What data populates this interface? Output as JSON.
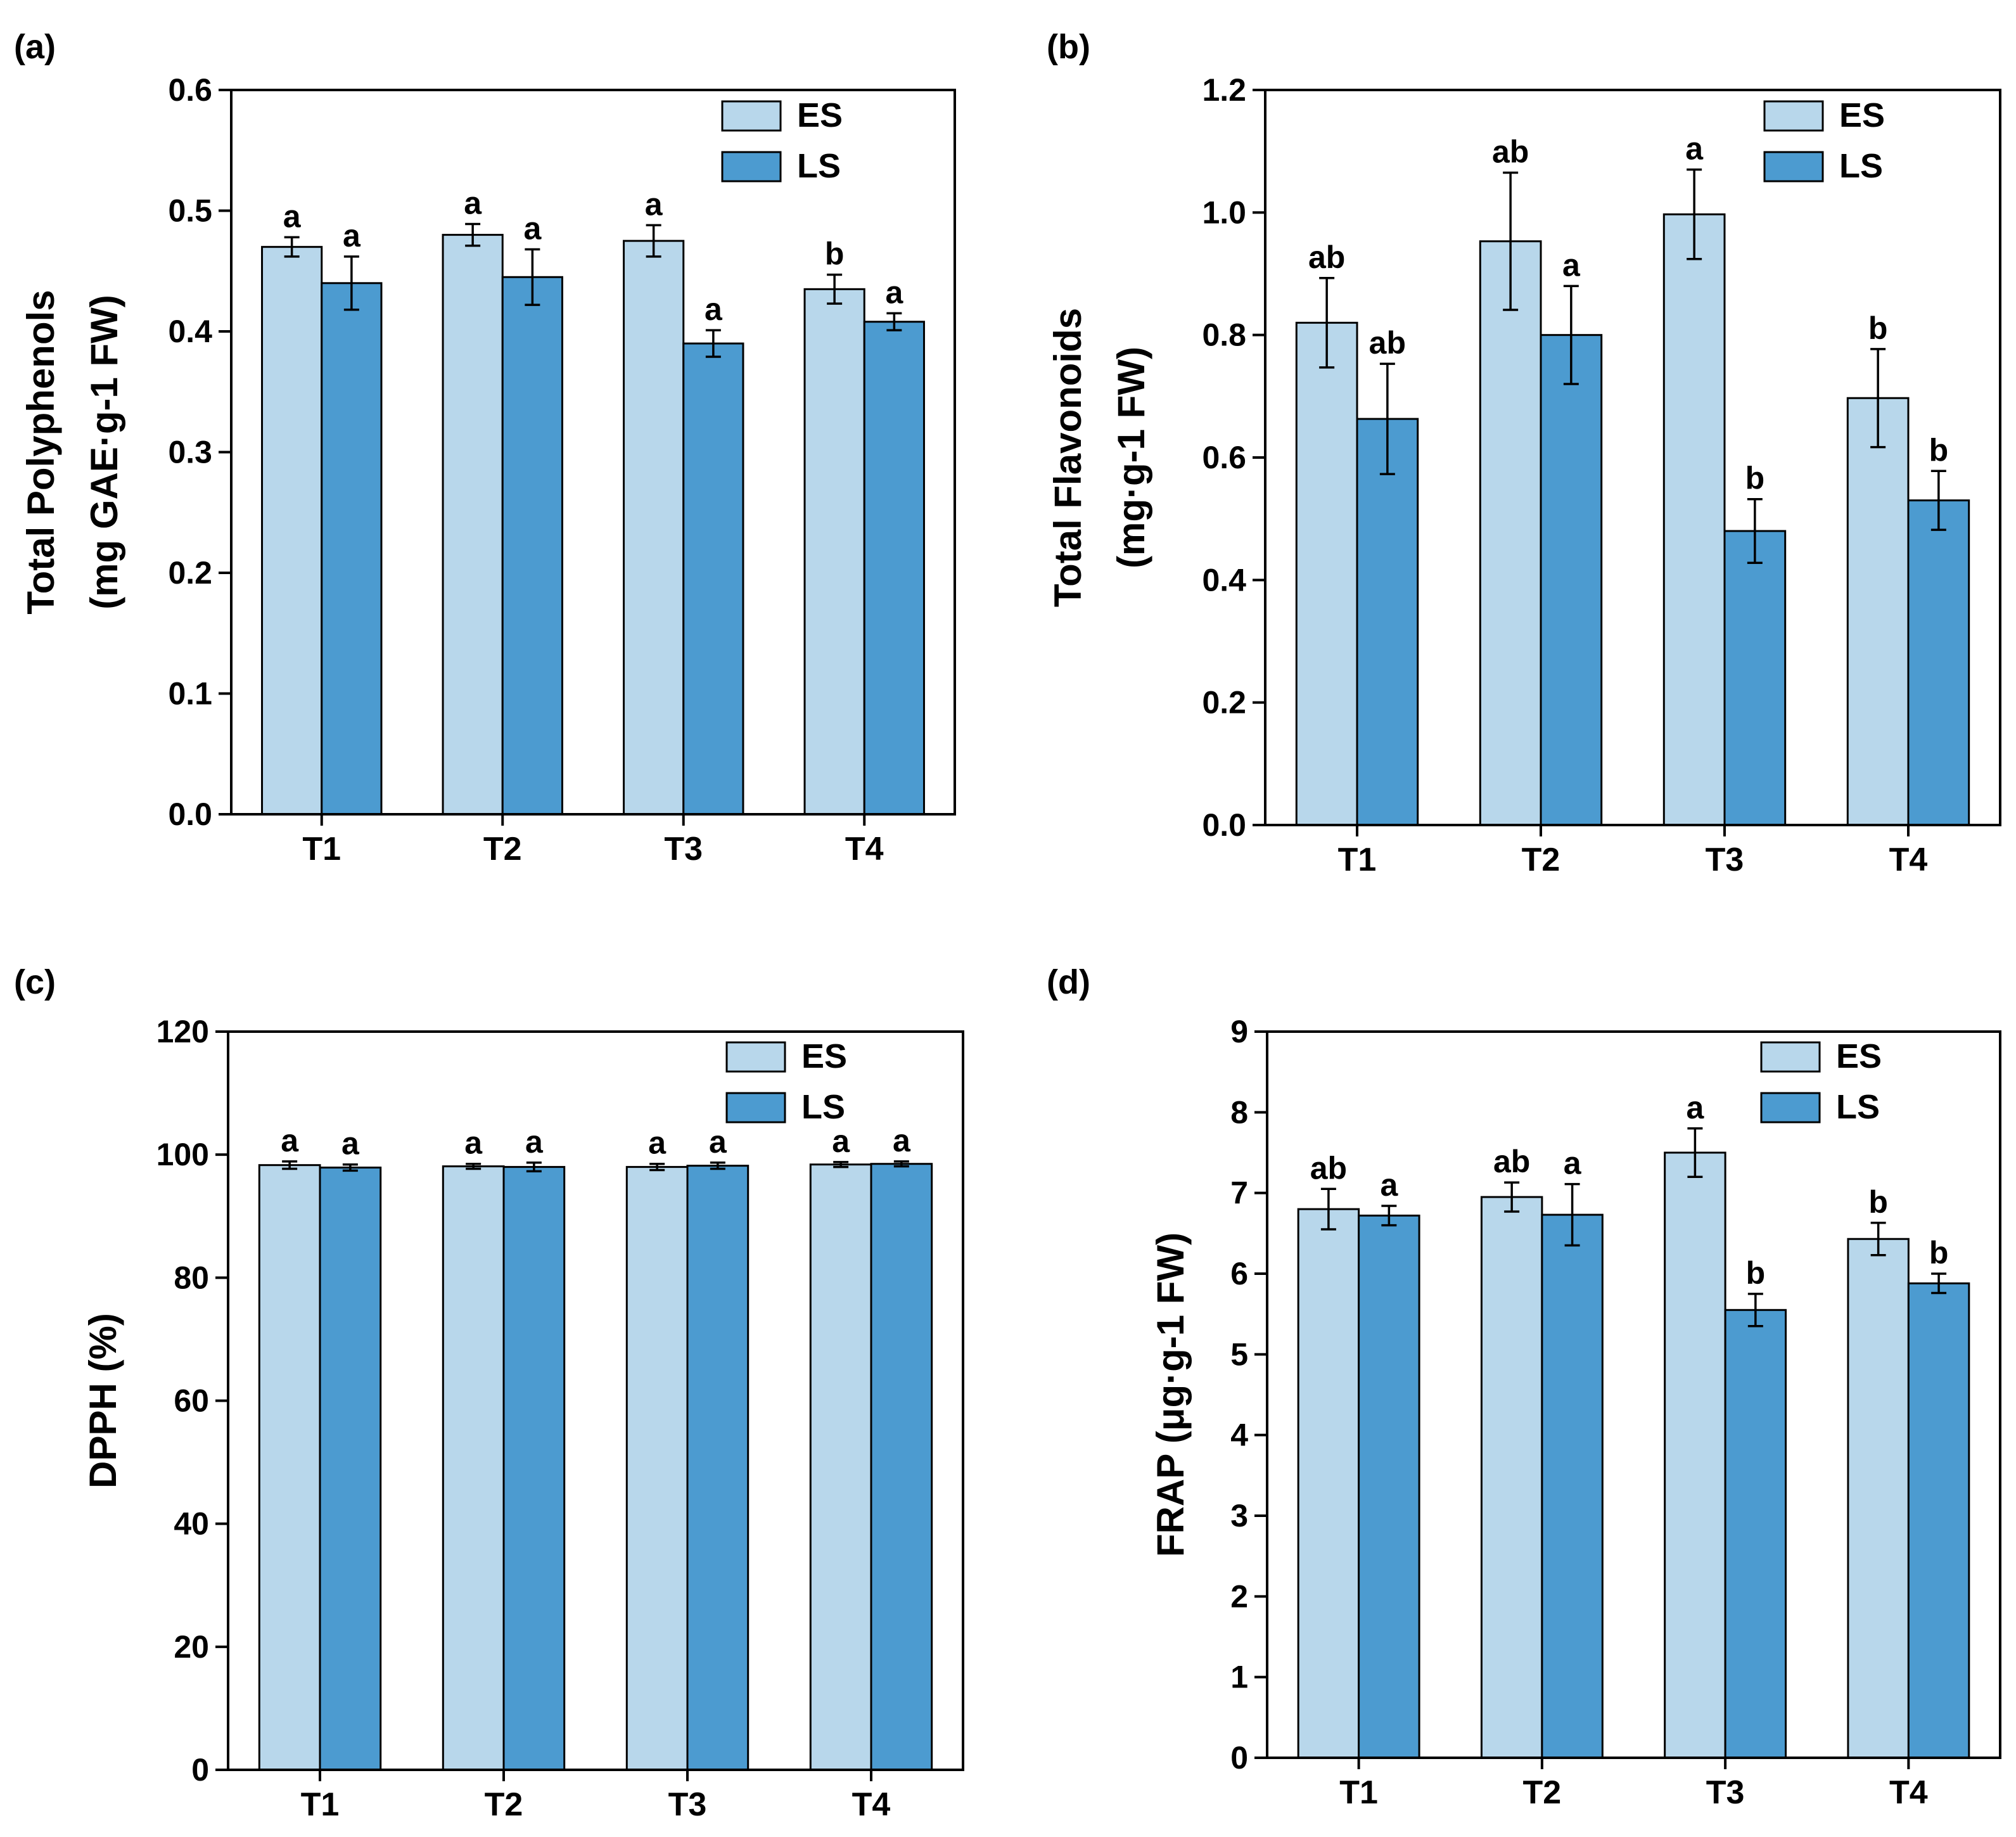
{
  "colors": {
    "ES": "#b8d7eb",
    "LS": "#4c9bd0"
  },
  "chart_data": [
    {
      "type": "bar",
      "panel_label": "(a)",
      "ylabel_lines": [
        "Total Polyphenols",
        "(mg GAE·g-1 FW)"
      ],
      "categories": [
        "T1",
        "T2",
        "T3",
        "T4"
      ],
      "ylim": [
        0,
        0.6
      ],
      "yticks": [
        0.0,
        0.1,
        0.2,
        0.3,
        0.4,
        0.5,
        0.6
      ],
      "ytick_labels": [
        "0.0",
        "0.1",
        "0.2",
        "0.3",
        "0.4",
        "0.5",
        "0.6"
      ],
      "legend": [
        "ES",
        "LS"
      ],
      "legend_position": "top-right",
      "series": [
        {
          "name": "ES",
          "values": [
            0.47,
            0.48,
            0.475,
            0.435
          ],
          "errors": [
            0.008,
            0.009,
            0.013,
            0.012
          ],
          "letters": [
            "a",
            "a",
            "a",
            "b"
          ]
        },
        {
          "name": "LS",
          "values": [
            0.44,
            0.445,
            0.39,
            0.408
          ],
          "errors": [
            0.022,
            0.023,
            0.011,
            0.007
          ],
          "letters": [
            "a",
            "a",
            "a",
            "a"
          ]
        }
      ]
    },
    {
      "type": "bar",
      "panel_label": "(b)",
      "ylabel_lines": [
        "Total Flavonoids",
        "(mg·g-1 FW)"
      ],
      "categories": [
        "T1",
        "T2",
        "T3",
        "T4"
      ],
      "ylim": [
        0,
        1.2
      ],
      "yticks": [
        0.0,
        0.2,
        0.4,
        0.6,
        0.8,
        1.0,
        1.2
      ],
      "ytick_labels": [
        "0.0",
        "0.2",
        "0.4",
        "0.6",
        "0.8",
        "1.0",
        "1.2"
      ],
      "legend": [
        "ES",
        "LS"
      ],
      "legend_position": "top-right",
      "series": [
        {
          "name": "ES",
          "values": [
            0.82,
            0.953,
            0.997,
            0.697
          ],
          "errors": [
            0.073,
            0.112,
            0.073,
            0.08
          ],
          "letters": [
            "ab",
            "ab",
            "a",
            "b"
          ]
        },
        {
          "name": "LS",
          "values": [
            0.663,
            0.8,
            0.48,
            0.53
          ],
          "errors": [
            0.09,
            0.08,
            0.052,
            0.048
          ],
          "letters": [
            "ab",
            "a",
            "b",
            "b"
          ]
        }
      ]
    },
    {
      "type": "bar",
      "panel_label": "(c)",
      "ylabel_lines": [
        "DPPH (%)"
      ],
      "categories": [
        "T1",
        "T2",
        "T3",
        "T4"
      ],
      "ylim": [
        0,
        120
      ],
      "yticks": [
        0,
        20,
        40,
        60,
        80,
        100,
        120
      ],
      "ytick_labels": [
        "0",
        "20",
        "40",
        "60",
        "80",
        "100",
        "120"
      ],
      "legend": [
        "ES",
        "LS"
      ],
      "legend_position": "top-right",
      "series": [
        {
          "name": "ES",
          "values": [
            98.3,
            98.1,
            98.0,
            98.4
          ],
          "errors": [
            0.6,
            0.4,
            0.5,
            0.4
          ],
          "letters": [
            "a",
            "a",
            "a",
            "a"
          ]
        },
        {
          "name": "LS",
          "values": [
            97.9,
            98.0,
            98.2,
            98.5
          ],
          "errors": [
            0.5,
            0.7,
            0.5,
            0.4
          ],
          "letters": [
            "a",
            "a",
            "a",
            "a"
          ]
        }
      ]
    },
    {
      "type": "bar",
      "panel_label": "(d)",
      "ylabel_lines": [
        "FRAP (μg·g-1 FW)"
      ],
      "categories": [
        "T1",
        "T2",
        "T3",
        "T4"
      ],
      "ylim": [
        0,
        9
      ],
      "yticks": [
        0,
        1,
        2,
        3,
        4,
        5,
        6,
        7,
        8,
        9
      ],
      "ytick_labels": [
        "0",
        "1",
        "2",
        "3",
        "4",
        "5",
        "6",
        "7",
        "8",
        "9"
      ],
      "legend": [
        "ES",
        "LS"
      ],
      "legend_position": "top-right",
      "series": [
        {
          "name": "ES",
          "values": [
            6.8,
            6.95,
            7.5,
            6.43
          ],
          "errors": [
            0.25,
            0.18,
            0.3,
            0.2
          ],
          "letters": [
            "ab",
            "ab",
            "a",
            "b"
          ]
        },
        {
          "name": "LS",
          "values": [
            6.72,
            6.73,
            5.55,
            5.88
          ],
          "errors": [
            0.12,
            0.38,
            0.2,
            0.12
          ],
          "letters": [
            "a",
            "a",
            "b",
            "b"
          ]
        }
      ]
    }
  ]
}
